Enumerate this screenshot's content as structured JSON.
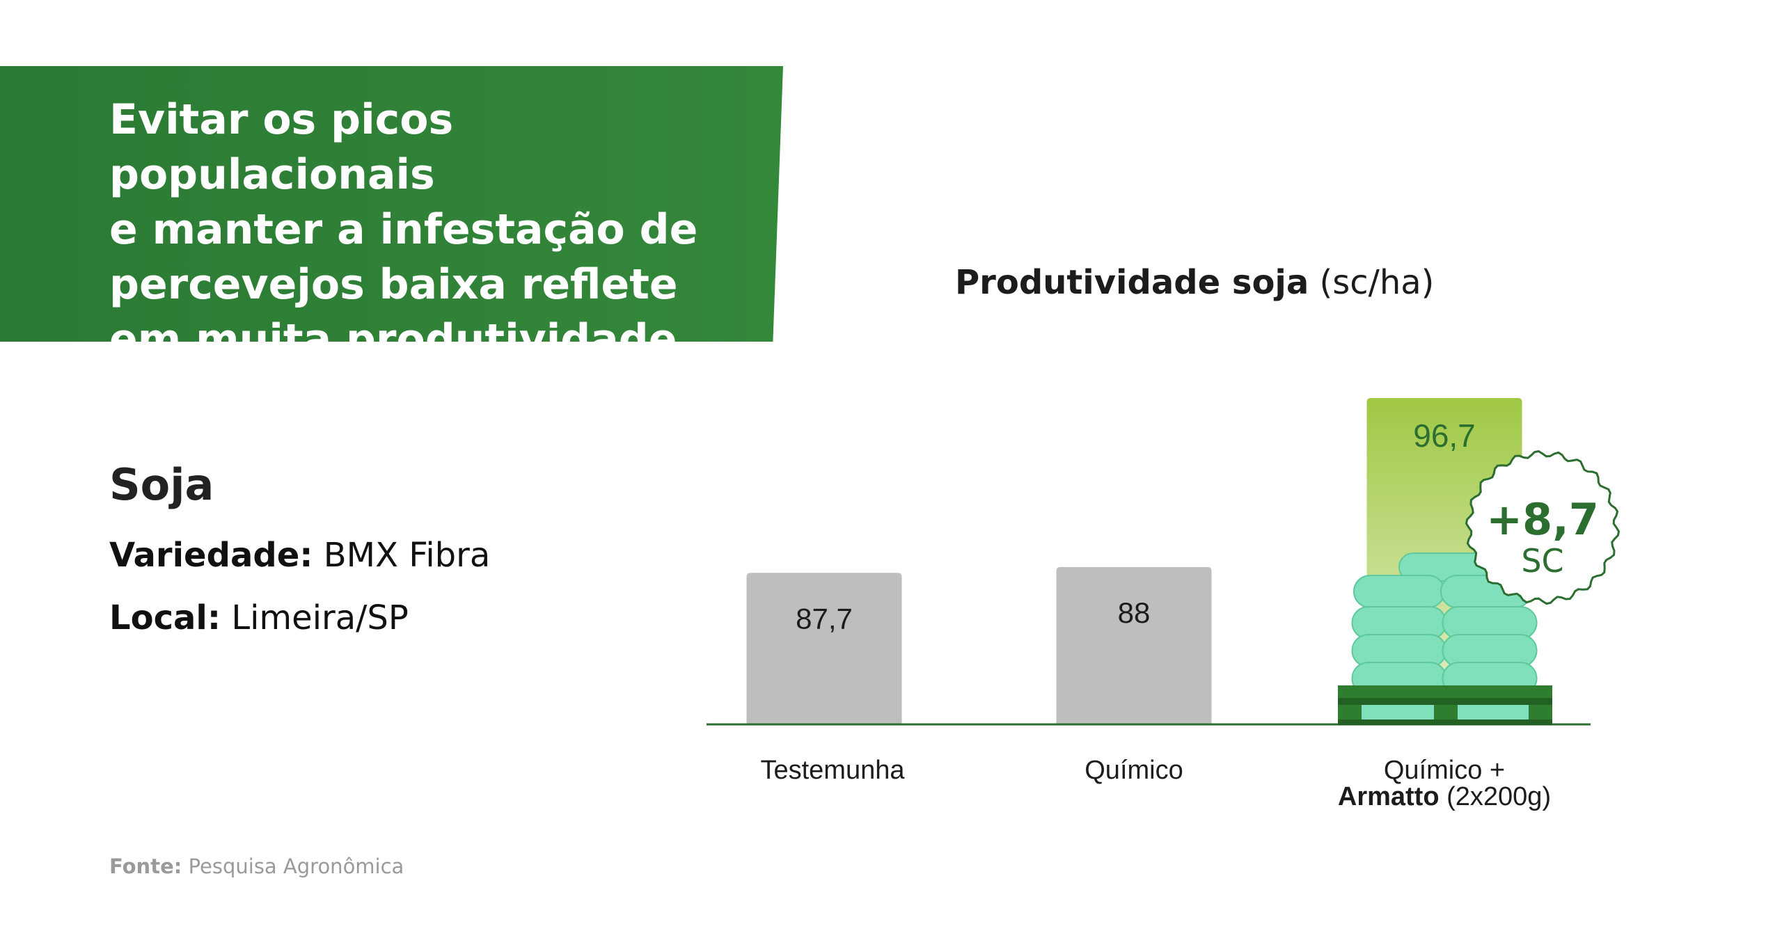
{
  "headline": "Evitar os picos populacionais\ne manter a infestação de\npercevejos baixa reflete\nem muita produtividade",
  "crop": "Soja",
  "variety_label": "Variedade:",
  "variety_value": "BMX Fibra",
  "location_label": "Local:",
  "location_value": "Limeira/SP",
  "source_label": "Fonte:",
  "source_value": "Pesquisa Agronômica",
  "colors": {
    "banner": "#2f8138",
    "bar_gray": "#bebebe",
    "bar_highlight_top": "#9fc843",
    "bar_highlight_bottom": "#e6f1cf",
    "dark_green": "#2c6e2f",
    "sacks": "#7fe0bb",
    "pallet": "#2f7d2e"
  },
  "badge": {
    "value": "+8,7",
    "unit": "SC"
  },
  "chart_data": {
    "type": "bar",
    "title_bold": "Produtividade soja",
    "title_unit": "(sc/ha)",
    "categories": [
      {
        "line1": "Testemunha",
        "bold": "",
        "rest": ""
      },
      {
        "line1": "Químico",
        "bold": "",
        "rest": ""
      },
      {
        "line1": "Químico +",
        "bold": "Armatto",
        "rest": " (2x200g)"
      }
    ],
    "values": [
      87.7,
      88,
      96.7
    ],
    "value_labels": [
      "87,7",
      "88",
      "96,7"
    ],
    "highlight_index": 2,
    "ylim": [
      79.9,
      96.7
    ],
    "grid": false
  }
}
